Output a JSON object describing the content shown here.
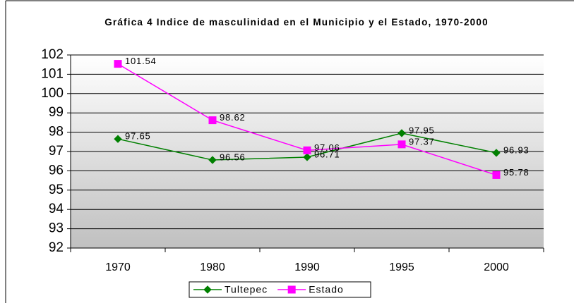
{
  "chart_data": {
    "type": "line",
    "title": "Gráfica 4 Indice de masculinidad en el Municipio y el Estado, 1970-2000",
    "categories": [
      "1970",
      "1980",
      "1990",
      "1995",
      "2000"
    ],
    "series": [
      {
        "name": "Tultepec",
        "color": "#008000",
        "marker": "diamond",
        "values": [
          97.65,
          96.56,
          96.71,
          97.95,
          96.93
        ]
      },
      {
        "name": "Estado",
        "color": "#ff00ff",
        "marker": "square",
        "values": [
          101.54,
          98.62,
          97.06,
          97.37,
          95.78
        ]
      }
    ],
    "ylim": [
      92,
      102
    ],
    "yticks": [
      92,
      93,
      94,
      95,
      96,
      97,
      98,
      99,
      100,
      101,
      102
    ],
    "grid": true,
    "legend": "bottom"
  }
}
